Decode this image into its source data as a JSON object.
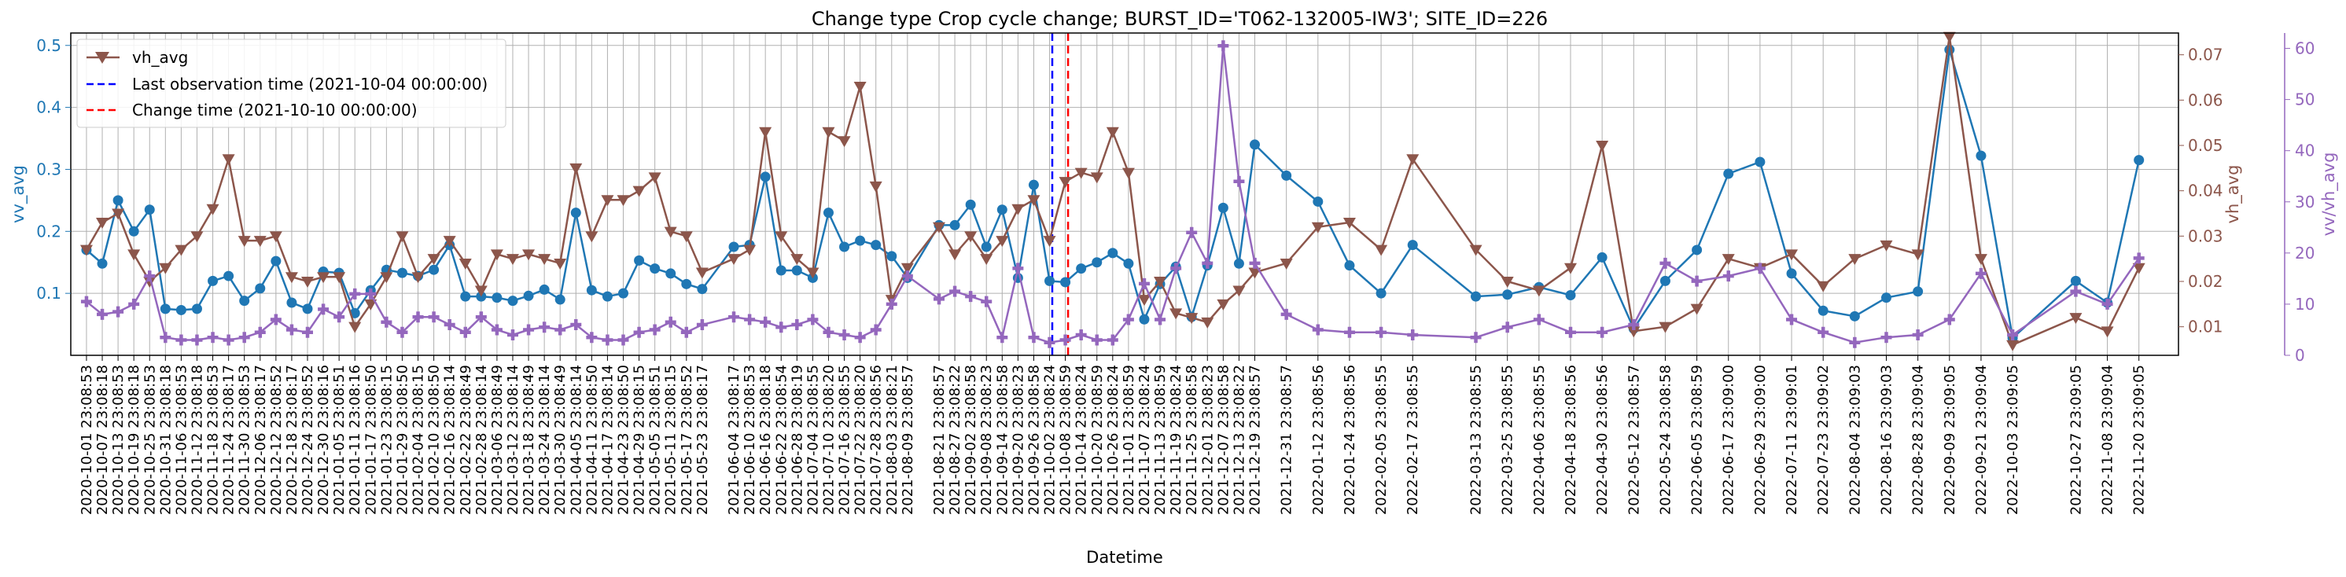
{
  "chart_data": {
    "type": "line",
    "title": "Change type Crop cycle change; BURST_ID='T062-132005-IW3'; SITE_ID=226",
    "xlabel": "Datetime",
    "axes": {
      "left": {
        "label": "vv_avg",
        "ylim": [
          0.0,
          0.52
        ],
        "ticks": [
          0.1,
          0.2,
          0.3,
          0.4,
          0.5
        ],
        "tick_labels": [
          "0.1",
          "0.2",
          "0.3",
          "0.4",
          "0.5"
        ],
        "color": "#1f77b4"
      },
      "right1": {
        "label": "vh_avg",
        "ylim": [
          0.0037,
          0.0748
        ],
        "ticks": [
          0.01,
          0.02,
          0.03,
          0.04,
          0.05,
          0.06,
          0.07
        ],
        "tick_labels": [
          "0.01",
          "0.02",
          "0.03",
          "0.04",
          "0.05",
          "0.06",
          "0.07"
        ],
        "color": "#8c564b"
      },
      "right2": {
        "label": "vv/vh_avg",
        "ylim": [
          0,
          63
        ],
        "ticks": [
          0,
          10,
          20,
          30,
          40,
          50,
          60
        ],
        "tick_labels": [
          "0",
          "10",
          "20",
          "30",
          "40",
          "50",
          "60"
        ],
        "color": "#9467bd"
      }
    },
    "grid": true,
    "legend": {
      "placement": "top-left",
      "entries": [
        {
          "label": "vh_avg",
          "color": "#8c564b",
          "style": "line-triangle"
        },
        {
          "label": "Last observation time (2021-10-04 00:00:00)",
          "color": "#0000ff",
          "style": "dashed"
        },
        {
          "label": "Change time (2021-10-10 00:00:00)",
          "color": "#ff0000",
          "style": "dashed"
        }
      ]
    },
    "vlines": [
      {
        "date": "2021-10-04",
        "color": "#0000ff"
      },
      {
        "date": "2021-10-10",
        "color": "#ff0000"
      }
    ],
    "x": [
      "2020-10-01 23:08:53",
      "2020-10-07 23:08:18",
      "2020-10-13 23:08:53",
      "2020-10-19 23:08:18",
      "2020-10-25 23:08:53",
      "2020-10-31 23:08:18",
      "2020-11-06 23:08:53",
      "2020-11-12 23:08:18",
      "2020-11-18 23:08:53",
      "2020-11-24 23:08:17",
      "2020-11-30 23:08:53",
      "2020-12-06 23:08:17",
      "2020-12-12 23:08:52",
      "2020-12-18 23:08:17",
      "2020-12-24 23:08:52",
      "2020-12-30 23:08:16",
      "2021-01-05 23:08:51",
      "2021-01-11 23:08:16",
      "2021-01-17 23:08:50",
      "2021-01-23 23:08:15",
      "2021-01-29 23:08:50",
      "2021-02-04 23:08:15",
      "2021-02-10 23:08:50",
      "2021-02-16 23:08:14",
      "2021-02-22 23:08:49",
      "2021-02-28 23:08:14",
      "2021-03-06 23:08:49",
      "2021-03-12 23:08:14",
      "2021-03-18 23:08:49",
      "2021-03-24 23:08:14",
      "2021-03-30 23:08:49",
      "2021-04-05 23:08:14",
      "2021-04-11 23:08:50",
      "2021-04-17 23:08:14",
      "2021-04-23 23:08:50",
      "2021-04-29 23:08:15",
      "2021-05-05 23:08:51",
      "2021-05-11 23:08:15",
      "2021-05-17 23:08:52",
      "2021-05-23 23:08:17",
      "2021-06-04 23:08:17",
      "2021-06-10 23:08:53",
      "2021-06-16 23:08:18",
      "2021-06-22 23:08:54",
      "2021-06-28 23:08:19",
      "2021-07-04 23:08:55",
      "2021-07-10 23:08:20",
      "2021-07-16 23:08:55",
      "2021-07-22 23:08:20",
      "2021-07-28 23:08:56",
      "2021-08-03 23:08:21",
      "2021-08-09 23:08:57",
      "2021-08-21 23:08:57",
      "2021-08-27 23:08:22",
      "2021-09-02 23:08:58",
      "2021-09-08 23:08:23",
      "2021-09-14 23:08:58",
      "2021-09-20 23:08:23",
      "2021-09-26 23:08:58",
      "2021-10-02 23:08:24",
      "2021-10-08 23:08:59",
      "2021-10-14 23:08:24",
      "2021-10-20 23:08:59",
      "2021-10-26 23:08:24",
      "2021-11-01 23:08:59",
      "2021-11-07 23:08:24",
      "2021-11-13 23:08:59",
      "2021-11-19 23:08:24",
      "2021-11-25 23:08:58",
      "2021-12-01 23:08:23",
      "2021-12-07 23:08:58",
      "2021-12-13 23:08:22",
      "2021-12-19 23:08:57",
      "2021-12-31 23:08:57",
      "2022-01-12 23:08:56",
      "2022-01-24 23:08:56",
      "2022-02-05 23:08:55",
      "2022-02-17 23:08:55",
      "2022-03-13 23:08:55",
      "2022-03-25 23:08:55",
      "2022-04-06 23:08:55",
      "2022-04-18 23:08:56",
      "2022-04-30 23:08:56",
      "2022-05-12 23:08:57",
      "2022-05-24 23:08:58",
      "2022-06-05 23:08:59",
      "2022-06-17 23:09:00",
      "2022-06-29 23:09:00",
      "2022-07-11 23:09:01",
      "2022-07-23 23:09:02",
      "2022-08-04 23:09:03",
      "2022-08-16 23:09:03",
      "2022-08-28 23:09:04",
      "2022-09-09 23:09:05",
      "2022-09-21 23:09:04",
      "2022-10-03 23:09:05",
      "2022-10-27 23:09:05",
      "2022-11-08 23:09:04",
      "2022-11-20 23:09:05"
    ],
    "tick_labels": [
      "2020-10-01 23:08:53",
      "2020-10-07 23:08:18",
      "2020-10-13 23:08:53",
      "2020-10-19 23:08:18",
      "2020-10-25 23:08:53",
      "2020-10-31 23:08:18",
      "2020-11-06 23:08:53",
      "2020-11-12 23:08:18",
      "2020-11-18 23:08:53",
      "2020-11-24 23:08:17",
      "2020-11-30 23:08:53",
      "2020-12-06 23:08:17",
      "2020-12-12 23:08:52",
      "2020-12-18 23:08:17",
      "2020-12-24 23:08:52",
      "2020-12-30 23:08:16",
      "2021-01-05 23:08:51",
      "2021-01-11 23:08:16",
      "2021-01-17 23:08:50",
      "2021-01-23 23:08:15",
      "2021-01-29 23:08:50",
      "2021-02-04 23:08:15",
      "2021-02-10 23:08:50",
      "2021-02-16 23:08:14",
      "2021-02-22 23:08:49",
      "2021-02-28 23:08:14",
      "2021-03-06 23:08:49",
      "2021-03-12 23:08:14",
      "2021-03-18 23:08:49",
      "2021-03-24 23:08:14",
      "2021-03-30 23:08:49",
      "2021-04-05 23:08:14",
      "2021-04-11 23:08:50",
      "2021-04-17 23:08:14",
      "2021-04-23 23:08:50",
      "2021-04-29 23:08:15",
      "2021-05-05 23:08:51",
      "2021-05-11 23:08:15",
      "2021-05-17 23:08:52",
      "2021-05-23 23:08:17",
      "2021-06-04 23:08:17",
      "2021-06-10 23:08:53",
      "2021-06-16 23:08:18",
      "2021-06-22 23:08:54",
      "2021-06-28 23:08:19",
      "2021-07-04 23:08:55",
      "2021-07-10 23:08:20",
      "2021-07-16 23:08:55",
      "2021-07-22 23:08:20",
      "2021-07-28 23:08:56",
      "2021-08-03 23:08:21",
      "2021-08-09 23:08:57",
      "2021-08-21 23:08:57",
      "2021-08-27 23:08:22",
      "2021-09-02 23:08:58",
      "2021-09-08 23:08:23",
      "2021-09-14 23:08:58",
      "2021-09-20 23:08:23",
      "2021-09-26 23:08:58",
      "2021-10-02 23:08:24",
      "2021-10-08 23:08:59",
      "2021-10-14 23:08:24",
      "2021-10-20 23:08:59",
      "2021-10-26 23:08:24",
      "2021-11-01 23:08:59",
      "2021-11-07 23:08:24",
      "2021-11-13 23:08:59",
      "2021-11-19 23:08:24",
      "2021-11-25 23:08:58",
      "2021-12-01 23:08:23",
      "2021-12-07 23:08:58",
      "2021-12-13 23:08:22",
      "2021-12-19 23:08:57",
      "2021-12-31 23:08:57",
      "2022-01-12 23:08:56",
      "2022-01-24 23:08:56",
      "2022-02-05 23:08:55",
      "2022-02-17 23:08:55",
      "2022-03-13 23:08:55",
      "2022-03-25 23:08:55",
      "2022-04-06 23:08:55",
      "2022-04-18 23:08:56",
      "2022-04-30 23:08:56",
      "2022-05-12 23:08:57",
      "2022-05-24 23:08:58",
      "2022-06-05 23:08:59",
      "2022-06-17 23:09:00",
      "2022-06-29 23:09:00",
      "2022-07-11 23:09:01",
      "2022-07-23 23:09:02",
      "2022-08-04 23:09:03",
      "2022-08-16 23:09:03",
      "2022-08-28 23:09:04",
      "2022-09-09 23:09:05",
      "2022-09-21 23:09:04",
      "2022-10-03 23:09:05",
      "2022-10-27 23:09:05",
      "2022-11-08 23:09:04",
      "2022-11-20 23:09:05"
    ],
    "series": [
      {
        "name": "vv_avg",
        "axis": "left",
        "color": "#1f77b4",
        "marker": "circle",
        "values": [
          0.17,
          0.148,
          0.25,
          0.2,
          0.235,
          0.075,
          0.073,
          0.075,
          0.12,
          0.128,
          0.088,
          0.108,
          0.152,
          0.085,
          0.075,
          0.135,
          0.133,
          0.068,
          0.105,
          0.138,
          0.133,
          0.128,
          0.138,
          0.178,
          0.095,
          0.095,
          0.093,
          0.088,
          0.096,
          0.106,
          0.09,
          0.23,
          0.105,
          0.095,
          0.1,
          0.153,
          0.14,
          0.132,
          0.115,
          0.107,
          0.175,
          0.178,
          0.288,
          0.137,
          0.137,
          0.125,
          0.23,
          0.175,
          0.185,
          0.178,
          0.16,
          0.125,
          0.21,
          0.21,
          0.243,
          0.175,
          0.235,
          0.125,
          0.275,
          0.12,
          0.118,
          0.14,
          0.15,
          0.165,
          0.148,
          0.058,
          0.115,
          0.143,
          0.062,
          0.145,
          0.238,
          0.148,
          0.34,
          0.29,
          0.248,
          0.145,
          0.1,
          0.178,
          0.095,
          0.098,
          0.11,
          0.097,
          0.158,
          0.043,
          0.12,
          0.17,
          0.293,
          0.312,
          0.132,
          0.072,
          0.063,
          0.093,
          0.103,
          0.493,
          0.322,
          0.028,
          0.12,
          0.085,
          0.315
        ]
      },
      {
        "name": "vh_avg",
        "axis": "right1",
        "color": "#8c564b",
        "marker": "triangle-down",
        "values": [
          0.027,
          0.033,
          0.035,
          0.026,
          0.02,
          0.023,
          0.027,
          0.03,
          0.036,
          0.047,
          0.029,
          0.029,
          0.03,
          0.021,
          0.02,
          0.021,
          0.021,
          0.01,
          0.015,
          0.021,
          0.03,
          0.021,
          0.025,
          0.029,
          0.024,
          0.018,
          0.026,
          0.025,
          0.026,
          0.025,
          0.024,
          0.045,
          0.03,
          0.038,
          0.038,
          0.04,
          0.043,
          0.031,
          0.03,
          0.022,
          0.025,
          0.027,
          0.053,
          0.03,
          0.025,
          0.022,
          0.053,
          0.051,
          0.063,
          0.041,
          0.016,
          0.023,
          0.032,
          0.026,
          0.03,
          0.025,
          0.029,
          0.036,
          0.038,
          0.029,
          0.042,
          0.044,
          0.043,
          0.053,
          0.044,
          0.016,
          0.02,
          0.013,
          0.012,
          0.011,
          0.015,
          0.018,
          0.022,
          0.024,
          0.032,
          0.033,
          0.027,
          0.047,
          0.027,
          0.02,
          0.018,
          0.023,
          0.05,
          0.009,
          0.01,
          0.014,
          0.025,
          0.023,
          0.026,
          0.019,
          0.025,
          0.028,
          0.026,
          0.074,
          0.025,
          0.006,
          0.012,
          0.009,
          0.023
        ]
      },
      {
        "name": "vv/vh_avg",
        "axis": "right2",
        "color": "#9467bd",
        "marker": "plus",
        "values": [
          10.5,
          8,
          8.5,
          10,
          15.5,
          3.5,
          3,
          3,
          3.5,
          3,
          3.5,
          4.5,
          7,
          5,
          4.5,
          9,
          7.5,
          12,
          12,
          6.5,
          4.5,
          7.5,
          7.5,
          6,
          4.5,
          7.5,
          5,
          4,
          5,
          5.5,
          5,
          6,
          3.5,
          3,
          3,
          4.5,
          5,
          6.5,
          4.5,
          6,
          7.5,
          7,
          6.5,
          5.5,
          6,
          7,
          4.5,
          4,
          3.5,
          5,
          10,
          15.5,
          11,
          12.5,
          11.5,
          10.5,
          3.5,
          17,
          3.5,
          2.5,
          3,
          4,
          3,
          3,
          7,
          14,
          7,
          17,
          24,
          18,
          60.5,
          34,
          18,
          8,
          5,
          4.5,
          4.5,
          4,
          3.5,
          5.5,
          7,
          4.5,
          4.5,
          6,
          18,
          14.5,
          15.5,
          17,
          7,
          4.5,
          2.5,
          3.5,
          4,
          7,
          16,
          4,
          12.5,
          10,
          19
        ]
      }
    ]
  }
}
